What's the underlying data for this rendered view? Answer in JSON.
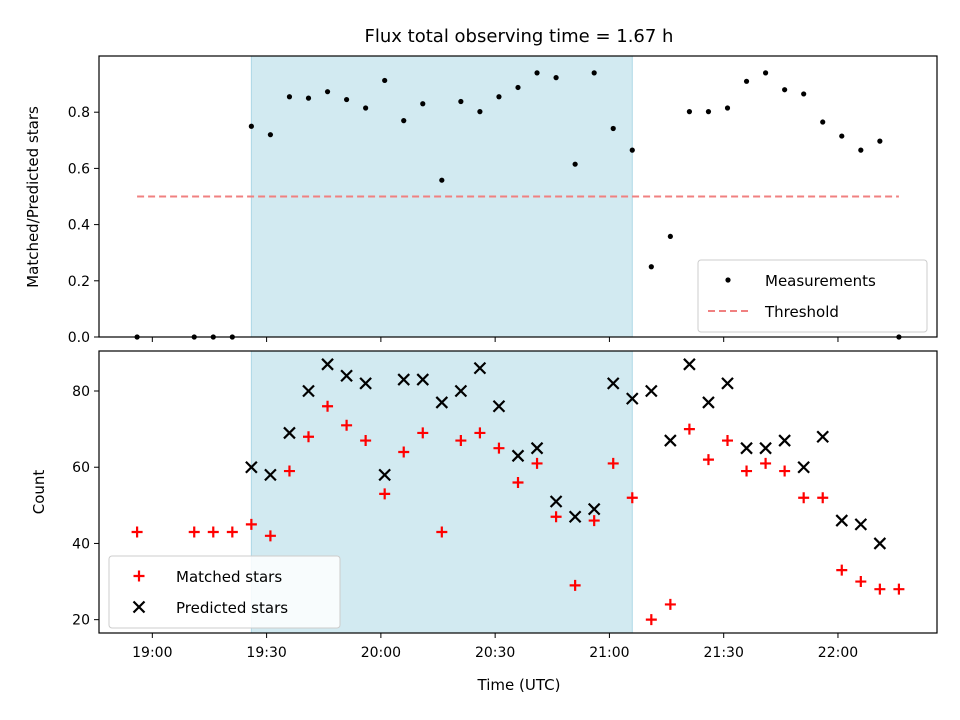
{
  "chart_data": [
    {
      "type": "scatter",
      "title": "Flux total observing time = 1.67 h",
      "ylabel": "Matched/Predicted stars",
      "xlabel": "",
      "ylim": [
        0,
        1.0
      ],
      "yticks": [
        0.0,
        0.2,
        0.4,
        0.6,
        0.8
      ],
      "ytick_labels": [
        "0.0",
        "0.2",
        "0.4",
        "0.6",
        "0.8"
      ],
      "legend_position": "lower right",
      "shaded_interval": [
        "19:26",
        "21:06"
      ],
      "shade_color": "#add8e6",
      "threshold": {
        "name": "Threshold",
        "value": 0.5,
        "x_range": [
          "18:56",
          "22:16"
        ],
        "color": "#f08080",
        "style": "dashed"
      },
      "series": [
        {
          "name": "Measurements",
          "marker": "dot",
          "color": "#000000",
          "x": [
            "18:56",
            "19:11",
            "19:16",
            "19:21",
            "19:26",
            "19:31",
            "19:36",
            "19:41",
            "19:46",
            "19:51",
            "19:56",
            "20:01",
            "20:06",
            "20:11",
            "20:16",
            "20:21",
            "20:26",
            "20:31",
            "20:36",
            "20:41",
            "20:46",
            "20:51",
            "20:56",
            "21:01",
            "21:06",
            "21:11",
            "21:16",
            "21:21",
            "21:26",
            "21:31",
            "21:36",
            "21:41",
            "21:46",
            "21:51",
            "21:56",
            "22:01",
            "22:06",
            "22:11",
            "22:16"
          ],
          "y": [
            0.0,
            0.0,
            0.0,
            0.0,
            0.75,
            0.72,
            0.855,
            0.85,
            0.873,
            0.845,
            0.815,
            0.913,
            0.77,
            0.83,
            0.558,
            0.838,
            0.802,
            0.855,
            0.888,
            0.94,
            0.923,
            0.615,
            0.94,
            0.742,
            0.665,
            0.25,
            0.358,
            0.802,
            0.802,
            0.815,
            0.91,
            0.94,
            0.88,
            0.865,
            0.765,
            0.715,
            0.665,
            0.697,
            0.0
          ]
        }
      ]
    },
    {
      "type": "scatter",
      "title": "",
      "ylabel": "Count",
      "xlabel": "Time (UTC)",
      "ylim": [
        16.5,
        90.5
      ],
      "yticks": [
        20,
        40,
        60,
        80
      ],
      "ytick_labels": [
        "20",
        "40",
        "60",
        "80"
      ],
      "xticks": [
        "19:00",
        "19:30",
        "20:00",
        "20:30",
        "21:00",
        "21:30",
        "22:00"
      ],
      "legend_position": "lower left",
      "shaded_interval": [
        "19:26",
        "21:06"
      ],
      "shade_color": "#add8e6",
      "series": [
        {
          "name": "Matched stars",
          "marker": "plus",
          "color": "#ff0000",
          "x": [
            "18:56",
            "19:11",
            "19:16",
            "19:21",
            "19:26",
            "19:31",
            "19:36",
            "19:41",
            "19:46",
            "19:51",
            "19:56",
            "20:01",
            "20:06",
            "20:11",
            "20:16",
            "20:21",
            "20:26",
            "20:31",
            "20:36",
            "20:41",
            "20:46",
            "20:51",
            "20:56",
            "21:01",
            "21:06",
            "21:11",
            "21:16",
            "21:21",
            "21:26",
            "21:31",
            "21:36",
            "21:41",
            "21:46",
            "21:51",
            "21:56",
            "22:01",
            "22:06",
            "22:11",
            "22:16"
          ],
          "y": [
            43,
            43,
            43,
            43,
            45,
            42,
            59,
            68,
            76,
            71,
            67,
            53,
            64,
            69,
            43,
            67,
            69,
            65,
            56,
            61,
            47,
            29,
            46,
            61,
            52,
            20,
            24,
            70,
            62,
            67,
            59,
            61,
            59,
            52,
            52,
            33,
            30,
            28,
            28
          ]
        },
        {
          "name": "Predicted stars",
          "marker": "x",
          "color": "#000000",
          "x": [
            "19:26",
            "19:31",
            "19:36",
            "19:41",
            "19:46",
            "19:51",
            "19:56",
            "20:01",
            "20:06",
            "20:11",
            "20:16",
            "20:21",
            "20:26",
            "20:31",
            "20:36",
            "20:41",
            "20:46",
            "20:51",
            "20:56",
            "21:01",
            "21:06",
            "21:11",
            "21:16",
            "21:21",
            "21:26",
            "21:31",
            "21:36",
            "21:41",
            "21:46",
            "21:51",
            "21:56",
            "22:01",
            "22:06",
            "22:11"
          ],
          "y": [
            60,
            58,
            69,
            80,
            87,
            84,
            82,
            58,
            83,
            83,
            77,
            80,
            86,
            76,
            63,
            65,
            51,
            47,
            49,
            82,
            78,
            80,
            67,
            87,
            77,
            82,
            65,
            65,
            67,
            60,
            68,
            46,
            45,
            40
          ]
        }
      ]
    }
  ]
}
